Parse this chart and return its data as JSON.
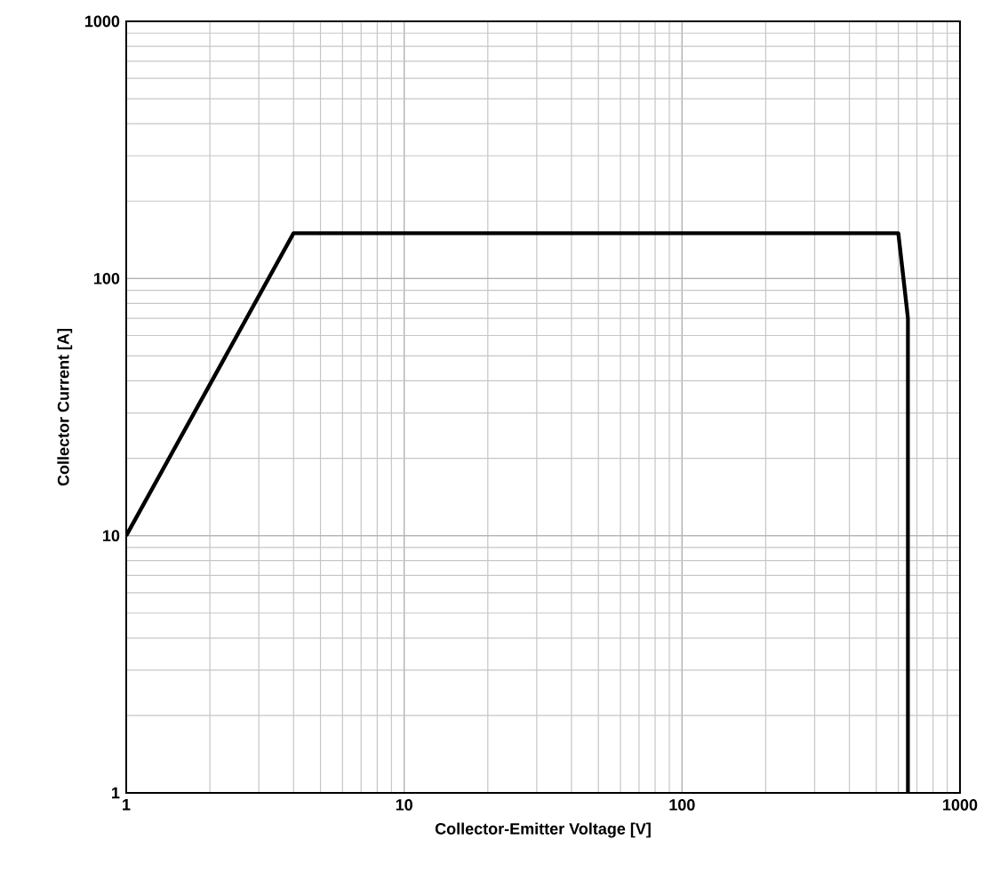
{
  "chart_data": {
    "type": "line",
    "xlabel": "Collector-Emitter Voltage   [V]",
    "ylabel": "Collector Current [A]",
    "x": [
      1,
      4,
      600,
      650,
      650
    ],
    "series": [
      {
        "color": "#000000",
        "values": [
          10,
          150,
          150,
          70,
          1
        ]
      }
    ],
    "xlim": [
      1,
      1000
    ],
    "ylim": [
      1,
      1000
    ],
    "xticks": [
      1,
      10,
      100,
      1000
    ],
    "yticks": [
      1,
      10,
      100,
      1000
    ],
    "log": "xy",
    "grid": true,
    "marker": "none",
    "line_style": "solid"
  }
}
